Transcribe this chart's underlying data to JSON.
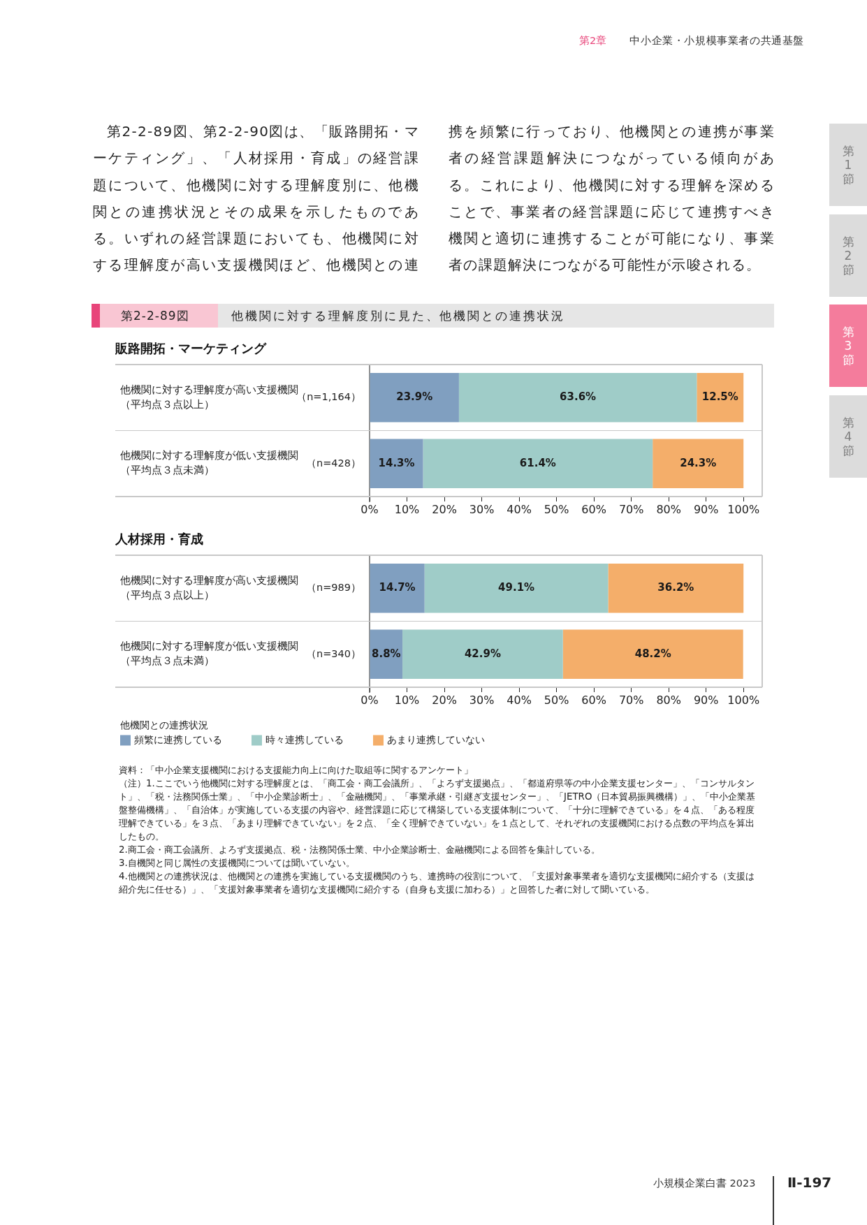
{
  "chart_data": [
    {
      "type": "bar",
      "orientation": "horizontal",
      "stacked": true,
      "title": "他機関に対する理解度別に見た、他機関との連携状況",
      "subtitle": "販路開拓・マーケティング",
      "categories": [
        "他機関に対する理解度が高い支援機関（平均点３点以上）",
        "他機関に対する理解度が低い支援機関（平均点３点未満）"
      ],
      "series": [
        {
          "color": "#809fc0",
          "values": [
            23.9,
            14.3
          ],
          "value_labels": [
            "23.9%",
            "14.3%"
          ]
        },
        {
          "color": "#9fccc8",
          "values": [
            63.6,
            61.4
          ],
          "value_labels": [
            "63.6%",
            "61.4%"
          ]
        },
        {
          "color": "#f4ae6a",
          "values": [
            12.5,
            24.3
          ],
          "value_labels": [
            "12.5%",
            "24.3%"
          ]
        }
      ],
      "xlim": [
        0,
        105
      ],
      "xticks": [
        {
          "value": 0,
          "label": "0%"
        },
        {
          "value": 10,
          "label": "10%"
        },
        {
          "value": 20,
          "label": "20%"
        },
        {
          "value": 30,
          "label": "30%"
        },
        {
          "value": 40,
          "label": "40%"
        },
        {
          "value": 50,
          "label": "50%"
        },
        {
          "value": 60,
          "label": "60%"
        },
        {
          "value": 70,
          "label": "70%"
        },
        {
          "value": 80,
          "label": "80%"
        },
        {
          "value": 90,
          "label": "90%"
        },
        {
          "value": 100,
          "label": "100%"
        }
      ],
      "annotations": [
        "第2章",
        "中小企業・小規模事業者の共通基盤",
        "第2-2-89図、第2-2-90図は、「販路開拓・マーケティング」、「人材採用・育成」の経営課題について、他機関に対する理解度別に、他機関との連携状況とその成果を示したものである。いずれの経営課題においても、他機関に対する理解度が高い支援機関ほど、他機関との連携を頻繁に行っており、他機関との連携が事業者の経営課題解決につながっている傾向がある。これにより、他機関に対する理解を深めることで、事業者の経営課題に応じて連携すべき機関と適切に連携することが可能になり、事業者の課題解決につながる可能性が示唆される。",
        "第1節",
        "第2節",
        "第3節",
        "第4節",
        "第2-2-89図",
        "（n=1,164）",
        "（n=428）"
      ]
    },
    {
      "type": "bar",
      "orientation": "horizontal",
      "stacked": true,
      "title": "人材採用・育成",
      "categories": [
        "他機関に対する理解度が高い支援機関（平均点３点以上）",
        "他機関に対する理解度が低い支援機関（平均点３点未満）"
      ],
      "series": [
        {
          "name": "頻繁に連携している",
          "color": "#809fc0",
          "values": [
            14.7,
            8.8
          ],
          "value_labels": [
            "14.7%",
            "8.8%"
          ]
        },
        {
          "name": "時々連携している",
          "color": "#9fccc8",
          "values": [
            49.1,
            42.9
          ],
          "value_labels": [
            "49.1%",
            "42.9%"
          ]
        },
        {
          "name": "あまり連携していない",
          "color": "#f4ae6a",
          "values": [
            36.2,
            48.2
          ],
          "value_labels": [
            "36.2%",
            "48.2%"
          ]
        }
      ],
      "xlim": [
        0,
        105
      ],
      "xticks": [
        {
          "value": 0,
          "label": "0%"
        },
        {
          "value": 10,
          "label": "10%"
        },
        {
          "value": 20,
          "label": "20%"
        },
        {
          "value": 30,
          "label": "30%"
        },
        {
          "value": 40,
          "label": "40%"
        },
        {
          "value": 50,
          "label": "50%"
        },
        {
          "value": 60,
          "label": "60%"
        },
        {
          "value": 70,
          "label": "70%"
        },
        {
          "value": 80,
          "label": "80%"
        },
        {
          "value": 90,
          "label": "90%"
        },
        {
          "value": 100,
          "label": "100%"
        }
      ],
      "legend": "bottom left",
      "legend_title": "他機関との連携状況",
      "annotations": [
        "資料：「中小企業支援機関における支援能力向上に向けた取組等に関するアンケート」",
        "（注）1.ここでいう他機関に対する理解度とは、「商工会・商工会議所」、「よろず支援拠点」、「都道府県等の中小企業支援センター」、「コンサルタント」、「税・法務関係士業」、「中小企業診断士」、「金融機関」、「事業承継・引継ぎ支援センター」、「JETRO（日本貿易振興機構）」、「中小企業基盤整備機構」、「自治体」が実施している支援の内容や、経営課題に応じて構築している支援体制について、「十分に理解できている」を４点、「ある程度理解できている」を３点、「あまり理解できていない」を２点、「全く理解できていない」を１点として、それぞれの支援機関における点数の平均点を算出したもの。",
        "2.商工会・商工会議所、よろず支援拠点、税・法務関係士業、中小企業診断士、金融機関による回答を集計している。",
        "3.自機関と同じ属性の支援機関については聞いていない。",
        "4.他機関との連携状況は、他機関との連携を実施している支援機関のうち、連携時の役割について、「支援対象事業者を適切な支援機関に紹介する（支援は紹介先に任せる）」、「支援対象事業者を適切な支援機関に紹介する（自身も支援に加わる）」と回答した者に対して聞いている。",
        "小規模企業白書 2023",
        "Ⅱ-197",
        "（n=989）",
        "（n=340）"
      ]
    }
  ]
}
